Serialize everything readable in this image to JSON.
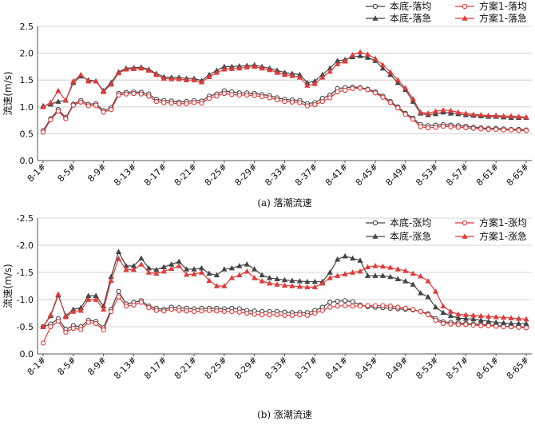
{
  "chart_data": [
    {
      "type": "line",
      "caption": "(a)  落潮流速",
      "ylabel": "流速(m/s)",
      "ylim": [
        0,
        2.5
      ],
      "yticks": [
        "0.0",
        "0.5",
        "1.0",
        "1.5",
        "2.0",
        "2.5"
      ],
      "grid": true,
      "legend_position": "top-right",
      "x_tick_labels": [
        "8-1#",
        "8-5#",
        "8-9#",
        "8-13#",
        "8-17#",
        "8-21#",
        "8-25#",
        "8-29#",
        "8-33#",
        "8-37#",
        "8-41#",
        "8-45#",
        "8-49#",
        "8-53#",
        "8-57#",
        "8-61#",
        "8-65#"
      ],
      "series": [
        {
          "name": "本底-落均",
          "color": "#444444",
          "marker": "circle",
          "values": [
            0.56,
            0.78,
            0.95,
            0.8,
            1.05,
            1.12,
            1.05,
            1.06,
            0.93,
            0.98,
            1.25,
            1.27,
            1.28,
            1.27,
            1.24,
            1.14,
            1.12,
            1.11,
            1.09,
            1.1,
            1.12,
            1.11,
            1.2,
            1.24,
            1.3,
            1.28,
            1.26,
            1.26,
            1.25,
            1.23,
            1.21,
            1.17,
            1.14,
            1.13,
            1.12,
            1.06,
            1.08,
            1.16,
            1.22,
            1.34,
            1.36,
            1.37,
            1.36,
            1.33,
            1.28,
            1.2,
            1.1,
            1.0,
            0.88,
            0.79,
            0.67,
            0.65,
            0.66,
            0.67,
            0.66,
            0.65,
            0.64,
            0.62,
            0.61,
            0.6,
            0.6,
            0.59,
            0.58,
            0.58,
            0.57
          ]
        },
        {
          "name": "方案1-落均",
          "color": "#e03a3a",
          "marker": "circle",
          "values": [
            0.53,
            0.76,
            0.92,
            0.78,
            1.03,
            1.09,
            1.02,
            1.03,
            0.9,
            0.95,
            1.22,
            1.24,
            1.25,
            1.24,
            1.2,
            1.1,
            1.08,
            1.07,
            1.06,
            1.06,
            1.08,
            1.07,
            1.16,
            1.2,
            1.25,
            1.23,
            1.22,
            1.22,
            1.21,
            1.19,
            1.17,
            1.13,
            1.1,
            1.09,
            1.08,
            1.02,
            1.04,
            1.1,
            1.17,
            1.28,
            1.31,
            1.34,
            1.35,
            1.32,
            1.26,
            1.18,
            1.08,
            0.98,
            0.86,
            0.77,
            0.63,
            0.61,
            0.62,
            0.64,
            0.63,
            0.62,
            0.61,
            0.6,
            0.59,
            0.58,
            0.58,
            0.57,
            0.57,
            0.56,
            0.56
          ]
        },
        {
          "name": "本底-落急",
          "color": "#444444",
          "marker": "triangle",
          "values": [
            1.02,
            1.05,
            1.1,
            1.12,
            1.45,
            1.57,
            1.5,
            1.48,
            1.3,
            1.45,
            1.65,
            1.72,
            1.73,
            1.74,
            1.7,
            1.62,
            1.56,
            1.55,
            1.55,
            1.53,
            1.53,
            1.49,
            1.6,
            1.68,
            1.75,
            1.75,
            1.76,
            1.77,
            1.78,
            1.75,
            1.72,
            1.68,
            1.64,
            1.62,
            1.6,
            1.45,
            1.48,
            1.6,
            1.72,
            1.86,
            1.88,
            1.93,
            1.95,
            1.92,
            1.86,
            1.72,
            1.6,
            1.45,
            1.32,
            1.1,
            0.88,
            0.85,
            0.87,
            0.9,
            0.88,
            0.87,
            0.85,
            0.84,
            0.83,
            0.82,
            0.82,
            0.81,
            0.8,
            0.8,
            0.8
          ]
        },
        {
          "name": "方案1-落急",
          "color": "#e03a3a",
          "marker": "triangle",
          "values": [
            1.0,
            1.08,
            1.3,
            1.12,
            1.48,
            1.6,
            1.48,
            1.48,
            1.28,
            1.42,
            1.63,
            1.7,
            1.71,
            1.72,
            1.68,
            1.6,
            1.53,
            1.52,
            1.52,
            1.5,
            1.5,
            1.46,
            1.56,
            1.64,
            1.7,
            1.71,
            1.72,
            1.74,
            1.75,
            1.72,
            1.69,
            1.64,
            1.6,
            1.58,
            1.55,
            1.4,
            1.43,
            1.55,
            1.66,
            1.8,
            1.85,
            1.97,
            2.02,
            1.98,
            1.9,
            1.78,
            1.65,
            1.5,
            1.35,
            1.15,
            0.9,
            0.88,
            0.92,
            0.94,
            0.93,
            0.9,
            0.88,
            0.86,
            0.85,
            0.84,
            0.84,
            0.83,
            0.83,
            0.82,
            0.81
          ]
        }
      ]
    },
    {
      "type": "line",
      "caption": "(b)  涨潮流速",
      "ylabel": "流速(m/s)",
      "ylim": [
        0,
        -2.5
      ],
      "yticks": [
        "0.0",
        "-0.5",
        "-1.0",
        "-1.5",
        "-2.0",
        "-2.5"
      ],
      "grid": true,
      "legend_position": "top-right",
      "x_tick_labels": [
        "8-1#",
        "8-5#",
        "8-9#",
        "8-13#",
        "8-17#",
        "8-21#",
        "8-25#",
        "8-29#",
        "8-33#",
        "8-37#",
        "8-41#",
        "8-45#",
        "8-49#",
        "8-53#",
        "8-57#",
        "8-61#",
        "8-65#"
      ],
      "series": [
        {
          "name": "本底-涨均",
          "color": "#444444",
          "marker": "circle",
          "values": [
            -0.5,
            -0.55,
            -0.65,
            -0.45,
            -0.52,
            -0.5,
            -0.62,
            -0.6,
            -0.48,
            -0.82,
            -1.15,
            -0.92,
            -0.95,
            -0.98,
            -0.88,
            -0.84,
            -0.82,
            -0.86,
            -0.85,
            -0.84,
            -0.83,
            -0.84,
            -0.84,
            -0.84,
            -0.83,
            -0.84,
            -0.83,
            -0.8,
            -0.79,
            -0.78,
            -0.78,
            -0.78,
            -0.77,
            -0.76,
            -0.76,
            -0.76,
            -0.8,
            -0.86,
            -0.95,
            -0.97,
            -0.98,
            -0.96,
            -0.9,
            -0.87,
            -0.86,
            -0.85,
            -0.84,
            -0.83,
            -0.82,
            -0.81,
            -0.78,
            -0.74,
            -0.65,
            -0.59,
            -0.58,
            -0.57,
            -0.56,
            -0.55,
            -0.54,
            -0.53,
            -0.52,
            -0.51,
            -0.5,
            -0.5,
            -0.49
          ]
        },
        {
          "name": "方案1-涨均",
          "color": "#e03a3a",
          "marker": "circle",
          "values": [
            -0.2,
            -0.5,
            -0.6,
            -0.4,
            -0.47,
            -0.45,
            -0.58,
            -0.56,
            -0.44,
            -0.78,
            -1.05,
            -0.88,
            -0.9,
            -0.95,
            -0.85,
            -0.8,
            -0.79,
            -0.82,
            -0.8,
            -0.79,
            -0.78,
            -0.79,
            -0.8,
            -0.79,
            -0.78,
            -0.78,
            -0.77,
            -0.75,
            -0.73,
            -0.72,
            -0.72,
            -0.72,
            -0.71,
            -0.71,
            -0.72,
            -0.71,
            -0.75,
            -0.8,
            -0.86,
            -0.88,
            -0.89,
            -0.88,
            -0.88,
            -0.89,
            -0.89,
            -0.89,
            -0.88,
            -0.86,
            -0.84,
            -0.82,
            -0.78,
            -0.72,
            -0.62,
            -0.56,
            -0.55,
            -0.54,
            -0.54,
            -0.53,
            -0.52,
            -0.52,
            -0.51,
            -0.5,
            -0.5,
            -0.49,
            -0.48
          ]
        },
        {
          "name": "本底-涨急",
          "color": "#444444",
          "marker": "triangle",
          "values": [
            -0.5,
            -0.7,
            -1.08,
            -0.7,
            -0.82,
            -0.85,
            -1.07,
            -1.07,
            -0.88,
            -1.42,
            -1.88,
            -1.62,
            -1.62,
            -1.76,
            -1.58,
            -1.55,
            -1.6,
            -1.65,
            -1.7,
            -1.56,
            -1.56,
            -1.58,
            -1.48,
            -1.45,
            -1.56,
            -1.58,
            -1.62,
            -1.65,
            -1.56,
            -1.45,
            -1.4,
            -1.38,
            -1.36,
            -1.35,
            -1.34,
            -1.33,
            -1.33,
            -1.33,
            -1.5,
            -1.74,
            -1.8,
            -1.76,
            -1.72,
            -1.44,
            -1.44,
            -1.44,
            -1.42,
            -1.38,
            -1.34,
            -1.28,
            -1.12,
            -1.05,
            -0.86,
            -0.76,
            -0.7,
            -0.66,
            -0.65,
            -0.64,
            -0.62,
            -0.6,
            -0.58,
            -0.57,
            -0.56,
            -0.56,
            -0.56
          ]
        },
        {
          "name": "方案1-涨急",
          "color": "#e03a3a",
          "marker": "triangle",
          "values": [
            -0.5,
            -0.72,
            -1.1,
            -0.68,
            -0.78,
            -0.8,
            -1.0,
            -1.0,
            -0.82,
            -1.35,
            -1.75,
            -1.55,
            -1.55,
            -1.65,
            -1.5,
            -1.48,
            -1.52,
            -1.57,
            -1.62,
            -1.46,
            -1.47,
            -1.5,
            -1.35,
            -1.25,
            -1.25,
            -1.4,
            -1.45,
            -1.52,
            -1.4,
            -1.34,
            -1.3,
            -1.28,
            -1.26,
            -1.25,
            -1.24,
            -1.23,
            -1.23,
            -1.3,
            -1.4,
            -1.44,
            -1.47,
            -1.5,
            -1.52,
            -1.6,
            -1.62,
            -1.61,
            -1.59,
            -1.56,
            -1.53,
            -1.48,
            -1.43,
            -1.34,
            -1.15,
            -0.88,
            -0.78,
            -0.73,
            -0.72,
            -0.71,
            -0.7,
            -0.69,
            -0.68,
            -0.67,
            -0.66,
            -0.65,
            -0.64
          ]
        }
      ]
    }
  ]
}
